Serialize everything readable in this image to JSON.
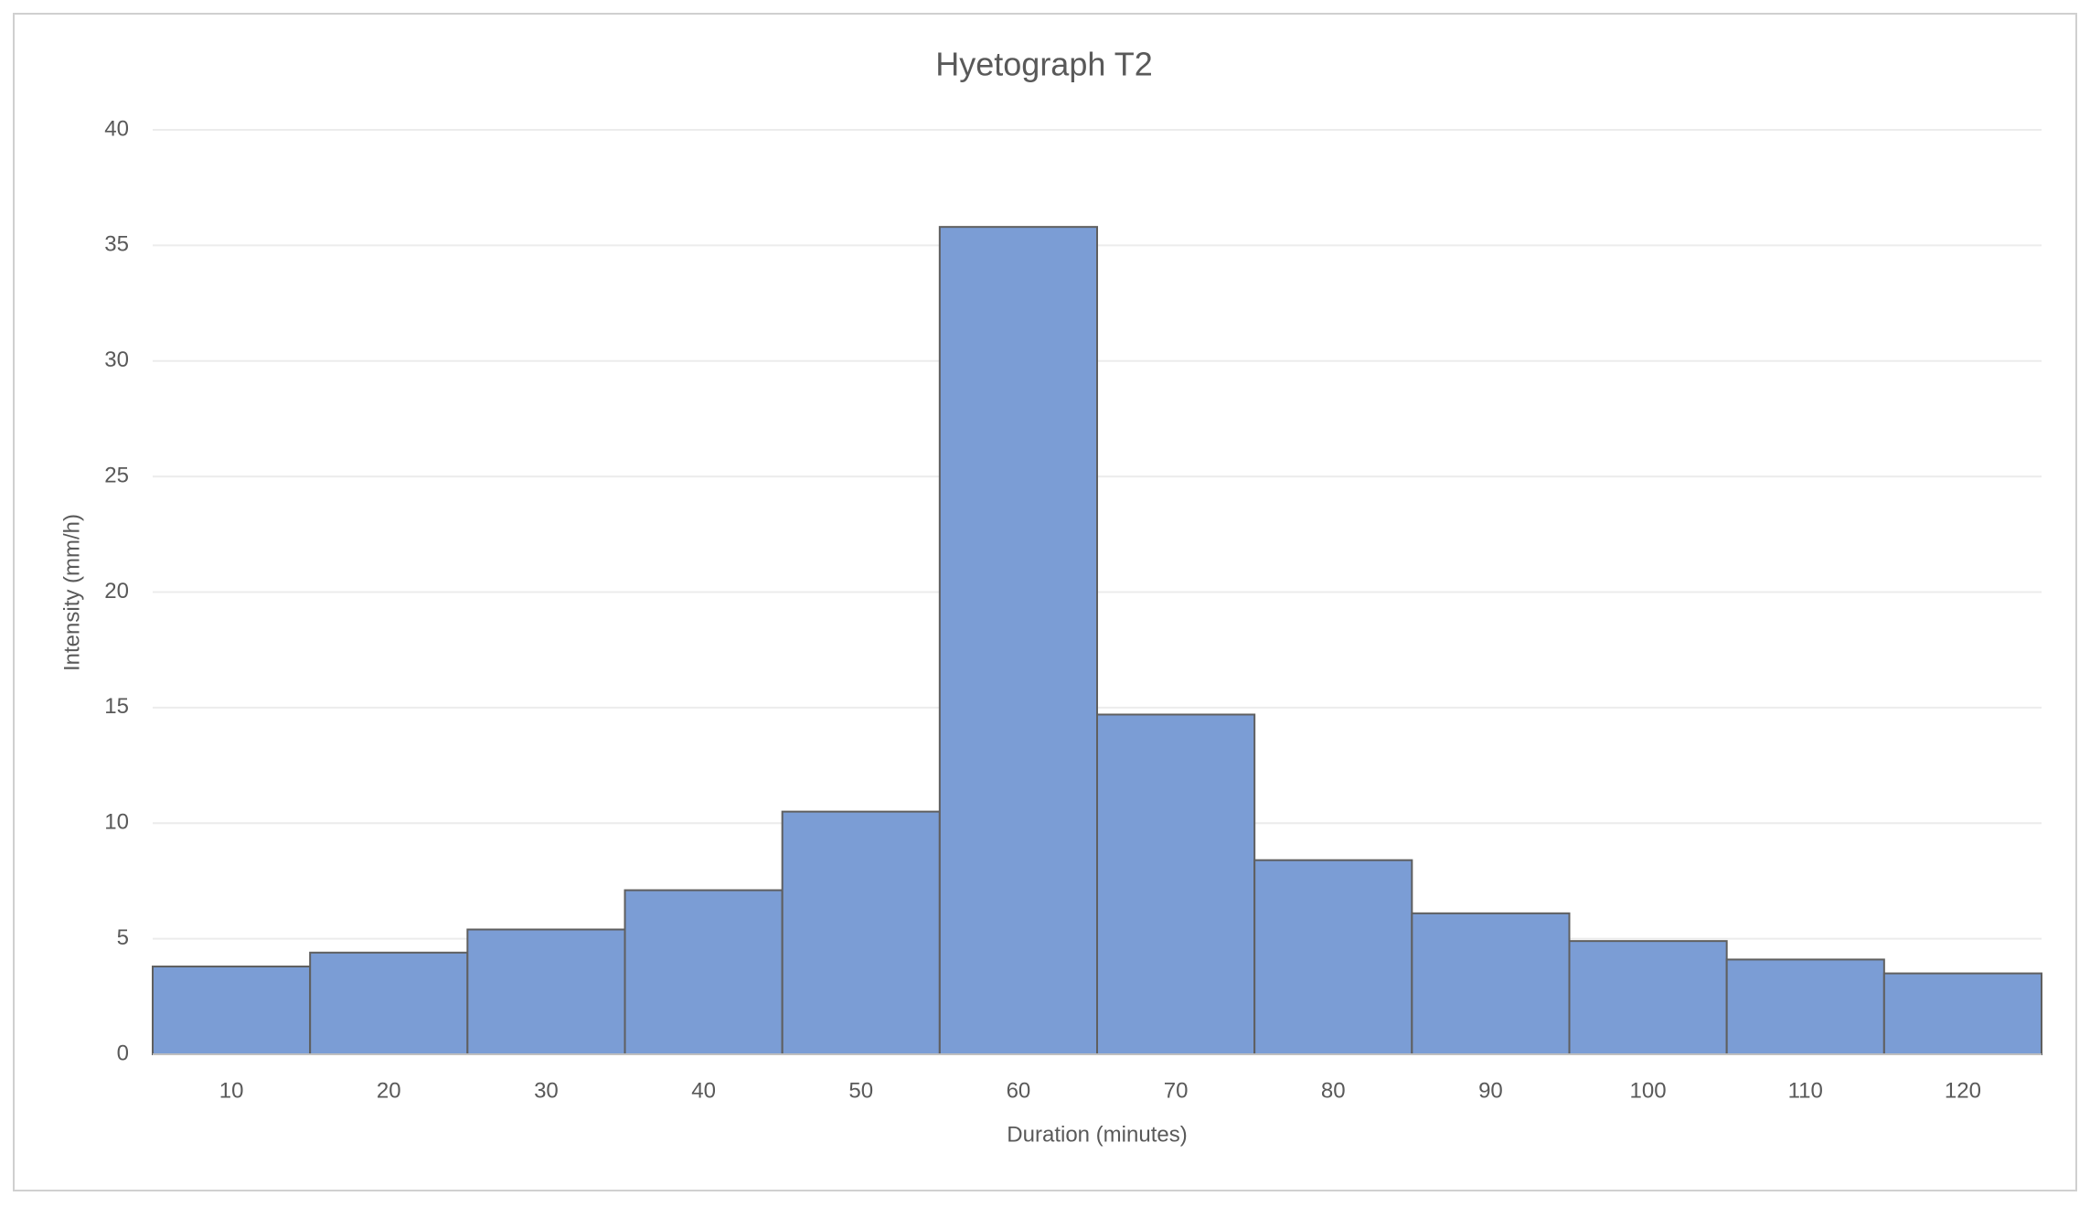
{
  "chart_data": {
    "type": "bar",
    "title": "Hyetograph T2",
    "x_label": "Duration (minutes)",
    "y_label": "Intensity (mm/h)",
    "categories": [
      "10",
      "20",
      "30",
      "40",
      "50",
      "60",
      "70",
      "80",
      "90",
      "100",
      "110",
      "120"
    ],
    "values": [
      3.8,
      4.4,
      5.4,
      7.1,
      10.5,
      35.8,
      14.7,
      8.4,
      6.1,
      4.9,
      4.1,
      3.5
    ],
    "color": "#7b9dd5",
    "edge_color": "#5f5f5f",
    "ylim": [
      0,
      40
    ],
    "yticks": [
      0,
      5,
      10,
      15,
      20,
      25,
      30,
      35,
      40
    ],
    "grid": true
  }
}
